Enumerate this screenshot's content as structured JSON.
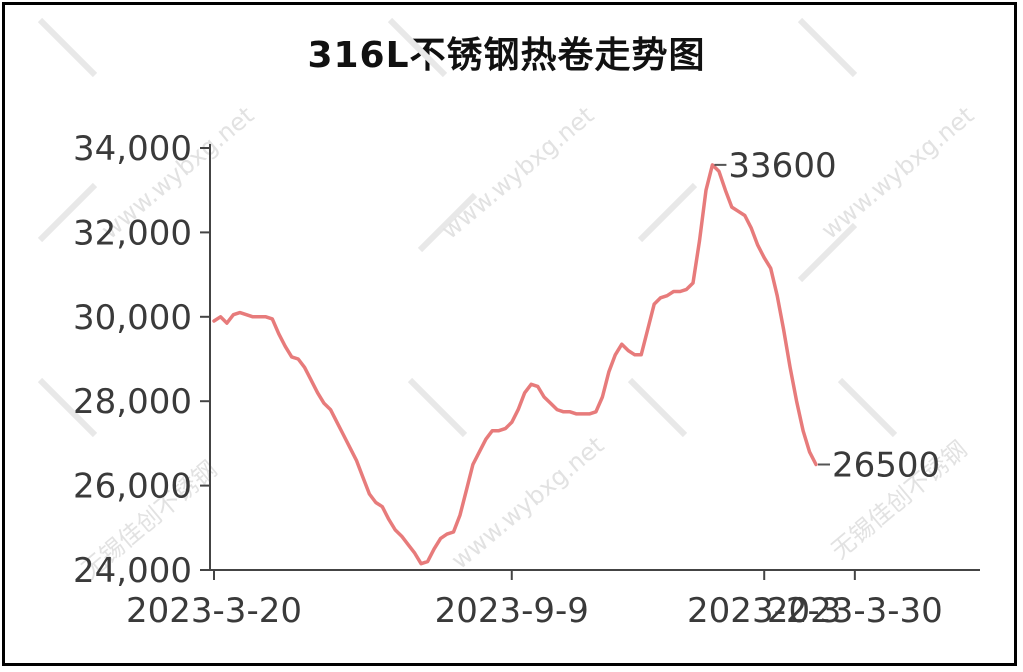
{
  "chart_data": {
    "type": "line",
    "title": "316L不锈钢热卷走势图",
    "xlabel": "",
    "ylabel": "",
    "ylim": [
      24000,
      34000
    ],
    "y_ticks": [
      "34,000",
      "32,000",
      "30,000",
      "28,000",
      "26,000",
      "24,000"
    ],
    "y_tick_values": [
      34000,
      32000,
      30000,
      28000,
      26000,
      24000
    ],
    "x_ticks": [
      "2023-3-20",
      "2023-9-9",
      "2023-2-3",
      "2023-3-30"
    ],
    "x_tick_index": [
      0,
      46,
      85,
      99
    ],
    "line_color": "#e77b7b",
    "grid": false,
    "series": [
      {
        "values": [
          29900,
          30000,
          29850,
          30050,
          30100,
          30050,
          30000,
          30000,
          30000,
          29950,
          29600,
          29300,
          29050,
          29000,
          28800,
          28500,
          28200,
          27950,
          27800,
          27500,
          27200,
          26900,
          26600,
          26200,
          25800,
          25600,
          25500,
          25200,
          24950,
          24800,
          24600,
          24400,
          24150,
          24200,
          24500,
          24750,
          24850,
          24900,
          25300,
          25900,
          26500,
          26800,
          27100,
          27300,
          27300,
          27350,
          27500,
          27800,
          28200,
          28400,
          28350,
          28100,
          27950,
          27800,
          27750,
          27750,
          27700,
          27700,
          27700,
          27750,
          28100,
          28700,
          29100,
          29350,
          29200,
          29100,
          29100,
          29700,
          30300,
          30450,
          30500,
          30600,
          30600,
          30650,
          30800,
          31800,
          33000,
          33600,
          33450,
          33000,
          32600,
          32500,
          32400,
          32100,
          31700,
          31400,
          31150,
          30500,
          29700,
          28800,
          28000,
          27300,
          26800,
          26500
        ]
      }
    ],
    "annotations": [
      "33600",
      "26500"
    ]
  },
  "watermarks": [
    "www.wybxg.net",
    "无锡佳创不锈钢"
  ]
}
